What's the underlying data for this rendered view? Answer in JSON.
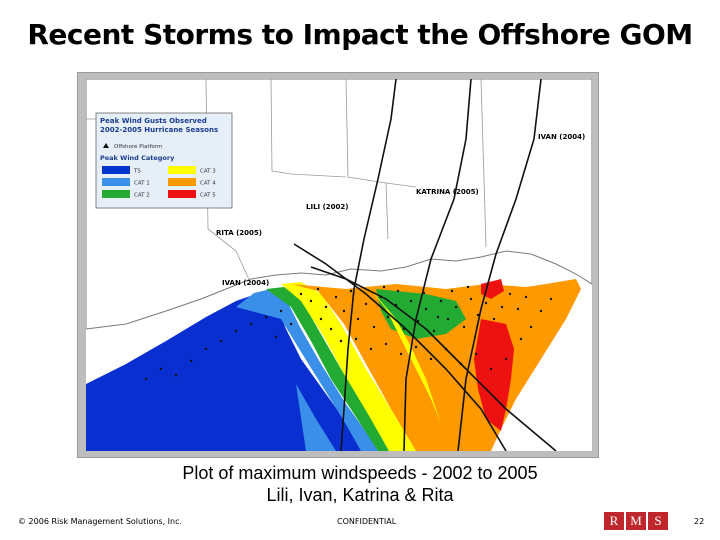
{
  "slide": {
    "title": "Recent Storms to Impact the Offshore GOM",
    "caption_line1": "Plot of maximum windspeeds - 2002 to 2005",
    "caption_line2": "Lili, Ivan, Katrina & Rita",
    "footer_copyright": "© 2006 Risk Management Solutions, Inc.",
    "footer_confidential": "CONFIDENTIAL",
    "page_number": "22",
    "logo_letters": [
      "R",
      "M",
      "S"
    ]
  },
  "map": {
    "legend": {
      "title_line1": "Peak Wind Gusts Observed",
      "title_line2": "2002-2005 Hurricane Seasons",
      "platform_label": "Offshore Platform",
      "category_heading": "Peak Wind Category",
      "categories": [
        {
          "label": "TS",
          "color": "#0033cc"
        },
        {
          "label": "CAT 3",
          "color": "#ffff00"
        },
        {
          "label": "CAT 1",
          "color": "#3a8fe8"
        },
        {
          "label": "CAT 4",
          "color": "#ff9900"
        },
        {
          "label": "CAT 2",
          "color": "#22aa33"
        },
        {
          "label": "CAT 5",
          "color": "#ee1111"
        }
      ]
    },
    "storm_labels": {
      "ivan_east": "IVAN (2004)",
      "katrina": "KATRINA (2005)",
      "lili": "LILI (2002)",
      "rita": "RITA (2005)",
      "ivan_west": "IVAN (2004)"
    },
    "colors": {
      "land": "#ffffff",
      "water": "#ffffff",
      "track": "#111111",
      "state_line": "#9a9a9a"
    }
  }
}
